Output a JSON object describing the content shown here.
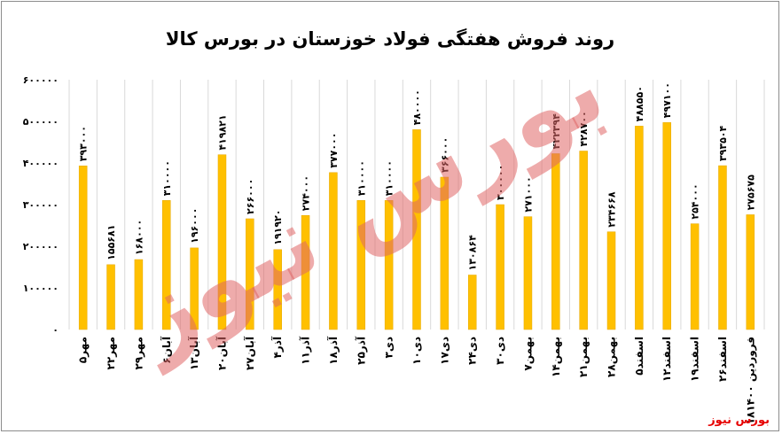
{
  "title": "روند فروش هفتگی فولاد خوزستان در بورس کالا",
  "source": "بورس نیوز",
  "watermark": "بورس نیوز",
  "colors": {
    "bar": "#ffc000",
    "bar_edge": "#e6a800",
    "grid": "#d9d9d9",
    "source": "#e60000",
    "watermark": "#e06666"
  },
  "chart_data": {
    "type": "bar",
    "title": "روند فروش هفتگی فولاد خوزستان در بورس کالا",
    "ylim": [
      0,
      600000
    ],
    "yticks": [
      0,
      100000,
      200000,
      300000,
      400000,
      500000,
      600000
    ],
    "ytick_labels": [
      "۰",
      "۱۰۰۰۰۰",
      "۲۰۰۰۰۰",
      "۳۰۰۰۰۰",
      "۴۰۰۰۰۰",
      "۵۰۰۰۰۰",
      "۶۰۰۰۰۰"
    ],
    "grid": "vertical",
    "categories": [
      "۵مهر",
      "۲۲مهر",
      "۲۹مهر",
      "۶آبان",
      "۱۳آبان",
      "۲۰آبان",
      "۲۷آبان",
      "۴آذر",
      "۱۱آذر",
      "۱۸آذر",
      "۲۵آذر",
      "۳دی",
      "۱۰دی",
      "۱۷دی",
      "۲۴دی",
      "۳۰دی",
      "۷بهمن",
      "۱۴بهمن",
      "۲۱بهمن",
      "۲۸بهمن",
      "۵اسفند",
      "۱۲اسفند",
      "۱۹اسفند",
      "۲۶اسفند",
      "۱۸فروردین ۱۴۰۰"
    ],
    "values": [
      393000,
      155681,
      168000,
      310000,
      196000,
      419821,
      266000,
      191920,
      274000,
      377000,
      310000,
      310000,
      480000,
      366000,
      130864,
      300000,
      271000,
      422394,
      428700,
      234668,
      488550,
      497100,
      254000,
      393504,
      275675
    ],
    "value_labels": [
      "۳۹۳۰۰۰",
      "۱۵۵۶۸۱",
      "۱۶۸۰۰۰",
      "۳۱۰۰۰۰",
      "۱۹۶۰۰۰",
      "۴۱۹۸۲۱",
      "۲۶۶۰۰۰",
      "۱۹۱۹۲۰",
      "۲۷۴۰۰۰",
      "۳۷۷۰۰۰",
      "۳۱۰۰۰۰",
      "۳۱۰۰۰۰",
      "۴۸۰۰۰۰",
      "۳۶۶۰۰۰",
      "۱۳۰۸۶۴",
      "۳۰۰۰۰۰",
      "۲۷۱۰۰۰",
      "۴۲۲۳۹۴",
      "۴۲۸۷۰۰",
      "۲۳۴۶۶۸",
      "۴۸۸۵۵۰",
      "۴۹۷۱۰۰",
      "۲۵۴۰۰۰",
      "۳۹۳۵۰۴",
      "۲۷۵۶۷۵"
    ]
  }
}
